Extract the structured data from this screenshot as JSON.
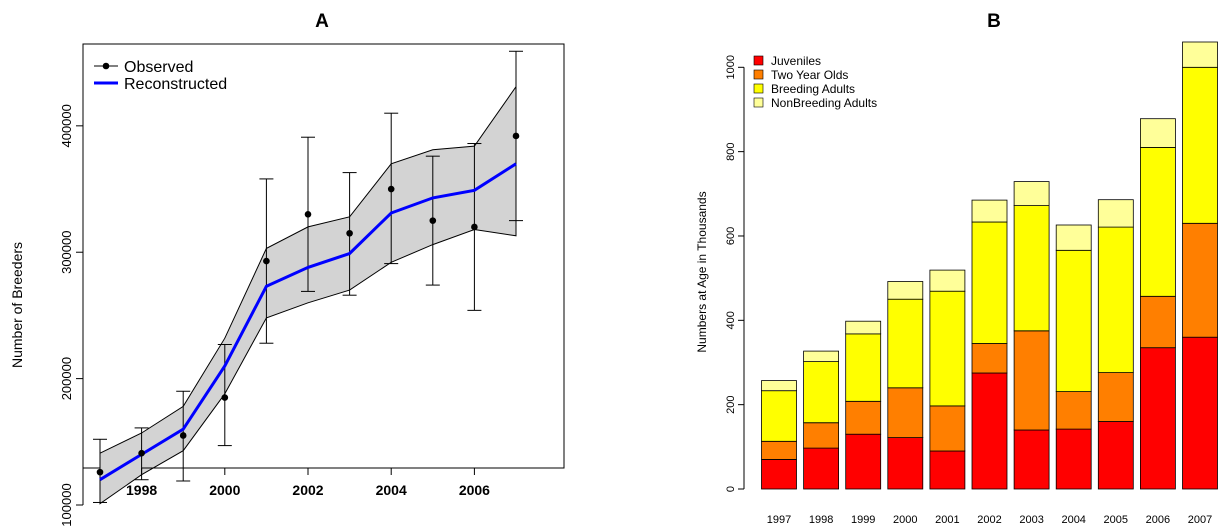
{
  "chart_data": [
    {
      "type": "line",
      "title": "A",
      "xlabel": "",
      "ylabel": "Number of Breeders",
      "xlim": [
        1997,
        2007
      ],
      "ylim": [
        100000,
        460000
      ],
      "x_ticks": [
        1998,
        2000,
        2002,
        2004,
        2006
      ],
      "y_ticks": [
        100000,
        200000,
        300000,
        400000
      ],
      "grid": false,
      "legend_position": "top-left",
      "x": [
        1997,
        1998,
        1999,
        2000,
        2001,
        2002,
        2003,
        2004,
        2005,
        2006,
        2007
      ],
      "series": [
        {
          "name": "Observed",
          "color": "#000000",
          "values": [
            126000,
            141000,
            155000,
            185000,
            293000,
            330000,
            315000,
            350000,
            325000,
            320000,
            392000
          ],
          "error_low": [
            102000,
            120000,
            119000,
            147000,
            228000,
            269000,
            266000,
            291000,
            274000,
            254000,
            325000
          ],
          "error_high": [
            152000,
            161000,
            190000,
            227000,
            358000,
            391000,
            363000,
            410000,
            376000,
            386000,
            459000
          ]
        },
        {
          "name": "Reconstructed",
          "color": "#0000ff",
          "values": [
            120000,
            140000,
            160000,
            210000,
            273000,
            288000,
            299000,
            331000,
            343000,
            349000,
            370000
          ],
          "band_low": [
            101000,
            124000,
            143000,
            188000,
            248000,
            260000,
            270000,
            292000,
            306000,
            318000,
            313000
          ],
          "band_high": [
            141000,
            157000,
            178000,
            232000,
            303000,
            320000,
            328000,
            370000,
            381000,
            384000,
            431000
          ]
        }
      ]
    },
    {
      "type": "bar",
      "stacked": true,
      "title": "B",
      "xlabel": "",
      "ylabel": "Numbers at Age in Thousands",
      "ylim": [
        0,
        1060
      ],
      "y_ticks": [
        0,
        200,
        400,
        600,
        800,
        1000
      ],
      "grid": false,
      "legend_position": "top-left",
      "categories": [
        "1997",
        "1998",
        "1999",
        "2000",
        "2001",
        "2002",
        "2003",
        "2004",
        "2005",
        "2006",
        "2007"
      ],
      "series": [
        {
          "name": "Juveniles",
          "color": "#ff0000",
          "values": [
            70,
            97,
            130,
            122,
            90,
            275,
            140,
            142,
            160,
            335,
            360
          ]
        },
        {
          "name": "Two Year Olds",
          "color": "#ff7f00",
          "values": [
            43,
            60,
            78,
            118,
            107,
            70,
            235,
            89,
            116,
            122,
            270
          ]
        },
        {
          "name": "Breeding Adults",
          "color": "#ffff00",
          "values": [
            120,
            145,
            160,
            210,
            272,
            288,
            297,
            335,
            345,
            353,
            370
          ]
        },
        {
          "name": "NonBreeding Adults",
          "color": "#ffff99",
          "values": [
            24,
            25,
            30,
            42,
            50,
            52,
            57,
            60,
            65,
            68,
            70
          ]
        }
      ]
    }
  ]
}
